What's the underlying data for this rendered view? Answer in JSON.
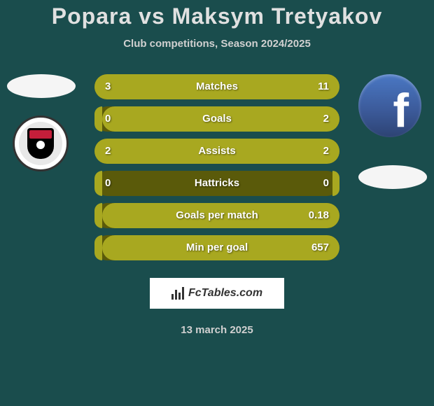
{
  "header": {
    "title": "Popara vs Maksym Tretyakov",
    "subtitle": "Club competitions, Season 2024/2025"
  },
  "player1": {
    "name": "Popara"
  },
  "player2": {
    "name": "Maksym Tretyakov"
  },
  "stats": [
    {
      "label": "Matches",
      "left_value": "3",
      "right_value": "11",
      "left_pct": 21,
      "right_pct": 79
    },
    {
      "label": "Goals",
      "left_value": "0",
      "right_value": "2",
      "left_pct": 3,
      "right_pct": 97
    },
    {
      "label": "Assists",
      "left_value": "2",
      "right_value": "2",
      "left_pct": 50,
      "right_pct": 50
    },
    {
      "label": "Hattricks",
      "left_value": "0",
      "right_value": "0",
      "left_pct": 3,
      "right_pct": 3
    },
    {
      "label": "Goals per match",
      "left_value": "",
      "right_value": "0.18",
      "left_pct": 3,
      "right_pct": 97
    },
    {
      "label": "Min per goal",
      "left_value": "",
      "right_value": "657",
      "left_pct": 3,
      "right_pct": 97
    }
  ],
  "colors": {
    "bar_bg": "#5a5a0a",
    "bar_fill": "#a8a820",
    "page_bg": "#1a4d4d",
    "text_light": "#e0e0e0"
  },
  "branding": {
    "site_name": "FcTables.com"
  },
  "footer": {
    "date": "13 march 2025"
  },
  "social": {
    "fb_letter": "f"
  }
}
